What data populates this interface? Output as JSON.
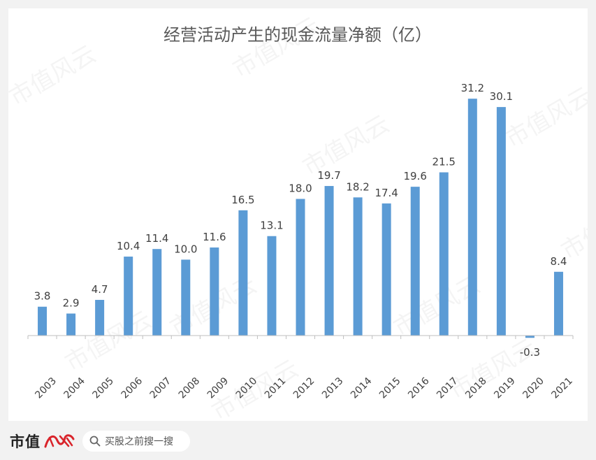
{
  "chart_data": {
    "type": "bar",
    "title": "经营活动产生的现金流量净额（亿）",
    "categories": [
      "2003",
      "2004",
      "2005",
      "2006",
      "2007",
      "2008",
      "2009",
      "2010",
      "2011",
      "2012",
      "2013",
      "2014",
      "2015",
      "2016",
      "2017",
      "2018",
      "2019",
      "2020",
      "2021"
    ],
    "values": [
      3.8,
      2.9,
      4.7,
      10.4,
      11.4,
      10.0,
      11.6,
      16.5,
      13.1,
      18.0,
      19.7,
      18.2,
      17.4,
      19.6,
      21.5,
      31.2,
      30.1,
      -0.3,
      8.4
    ],
    "value_labels": [
      "3.8",
      "2.9",
      "4.7",
      "10.4",
      "11.4",
      "10.0",
      "11.6",
      "16.5",
      "13.1",
      "18.0",
      "19.7",
      "18.2",
      "17.4",
      "19.6",
      "21.5",
      "31.2",
      "30.1",
      "-0.3",
      "8.4"
    ],
    "xlabel": "",
    "ylabel": "",
    "ylim": [
      -2.5,
      35
    ],
    "grid": false,
    "legend": "none",
    "bar_color": "#5b9bd5"
  },
  "watermark": "市值风云",
  "footer": {
    "brand": "市值",
    "brand_mark": "风云",
    "search_text": "买股之前搜一搜",
    "search_icon": "search-icon"
  }
}
